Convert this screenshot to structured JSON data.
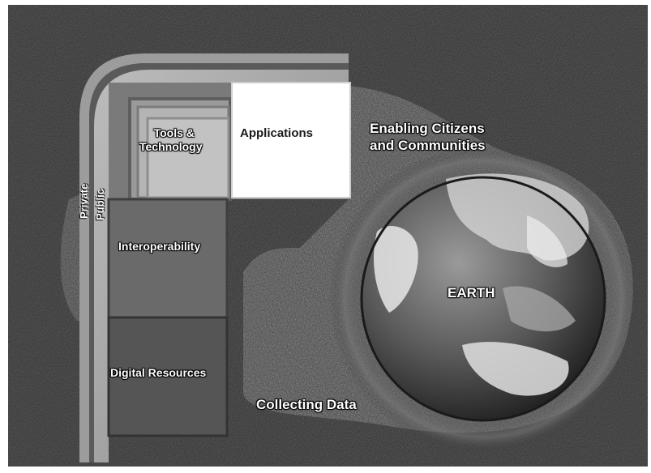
{
  "labels": {
    "private": "Private",
    "public": "Public",
    "tools_technology_line1": "Tools &",
    "tools_technology_line2": "Technology",
    "applications": "Applications",
    "interoperability": "Interoperability",
    "digital_resources": "Digital Resources",
    "enabling_line1": "Enabling Citizens",
    "enabling_line2": "and Communities",
    "collecting_data": "Collecting Data",
    "earth": "EARTH"
  }
}
